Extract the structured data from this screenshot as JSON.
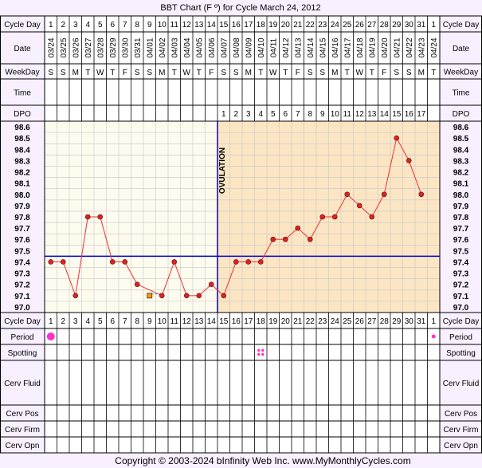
{
  "title": "BBT Chart (F º) for Cycle March 24, 2012",
  "footer": "Copyright © 2003-2024 bInfinity Web Inc.     www.MyMonthlyCycles.com",
  "row_labels": {
    "cycle_day": "Cycle Day",
    "date": "Date",
    "weekday": "WeekDay",
    "time": "Time",
    "dpo": "DPO",
    "period": "Period",
    "spotting": "Spotting",
    "cerv_fluid": "Cerv Fluid",
    "cerv_pos": "Cerv Pos",
    "cerv_firm": "Cerv Firm",
    "cerv_opn": "Cerv Opn"
  },
  "ovulation_label": "OVULATION",
  "colors": {
    "background": "#f8f0ff",
    "pre_ovulation_grid": "#fdfbee",
    "post_ovulation_grid": "#fbe5c3",
    "line": "#ee3333",
    "point": "#dd2222",
    "coverline": "#0000cc",
    "period": "#ff33cc",
    "grid": "#c8c8c8",
    "border": "#000000"
  },
  "chart_data": {
    "type": "line",
    "title": "BBT Chart (F º) for Cycle March 24, 2012",
    "cycle_days": [
      1,
      2,
      3,
      4,
      5,
      6,
      7,
      8,
      9,
      10,
      11,
      12,
      13,
      14,
      15,
      16,
      17,
      18,
      19,
      20,
      21,
      22,
      23,
      24,
      25,
      26,
      27,
      28,
      29,
      30,
      31,
      1
    ],
    "dates": [
      "03/24",
      "03/25",
      "03/26",
      "03/27",
      "03/28",
      "03/29",
      "03/30",
      "03/31",
      "04/01",
      "04/02",
      "04/03",
      "04/04",
      "04/05",
      "04/06",
      "04/07",
      "04/08",
      "04/09",
      "04/10",
      "04/11",
      "04/12",
      "04/13",
      "04/14",
      "04/15",
      "04/16",
      "04/17",
      "04/18",
      "04/19",
      "04/20",
      "04/21",
      "04/22",
      "04/23",
      "04/24"
    ],
    "weekdays": [
      "S",
      "S",
      "M",
      "T",
      "W",
      "T",
      "F",
      "S",
      "S",
      "M",
      "T",
      "W",
      "T",
      "F",
      "S",
      "S",
      "M",
      "T",
      "W",
      "T",
      "F",
      "S",
      "S",
      "M",
      "T",
      "W",
      "T",
      "F",
      "S",
      "S",
      "M",
      "T"
    ],
    "dpo": [
      "",
      "",
      "",
      "",
      "",
      "",
      "",
      "",
      "",
      "",
      "",
      "",
      "",
      "",
      "1",
      "2",
      "3",
      "4",
      "5",
      "6",
      "7",
      "8",
      "9",
      "10",
      "11",
      "12",
      "13",
      "14",
      "15",
      "16",
      "17",
      ""
    ],
    "temperatures": [
      97.4,
      97.4,
      97.1,
      97.8,
      97.8,
      97.4,
      97.4,
      97.2,
      null,
      97.1,
      97.4,
      97.1,
      97.1,
      97.2,
      97.1,
      97.4,
      97.4,
      97.4,
      97.6,
      97.6,
      97.7,
      97.6,
      97.8,
      97.8,
      98.0,
      97.9,
      97.8,
      98.0,
      98.5,
      98.3,
      98.0,
      null
    ],
    "discarded": [
      {
        "day_index": 8,
        "temp": 97.1
      }
    ],
    "y_ticks": [
      "98.6",
      "98.5",
      "98.4",
      "98.3",
      "98.2",
      "98.1",
      "98.0",
      "97.9",
      "97.8",
      "97.7",
      "97.6",
      "97.5",
      "97.4",
      "97.3",
      "97.2",
      "97.1",
      "97.0"
    ],
    "ylim": [
      97.0,
      98.6
    ],
    "coverline": 97.5,
    "ovulation_day_index": 13,
    "period": [
      {
        "day_index": 0,
        "size": "large"
      },
      {
        "day_index": 31,
        "size": "small"
      }
    ],
    "spotting": [
      {
        "day_index": 17
      }
    ],
    "grid": true
  }
}
